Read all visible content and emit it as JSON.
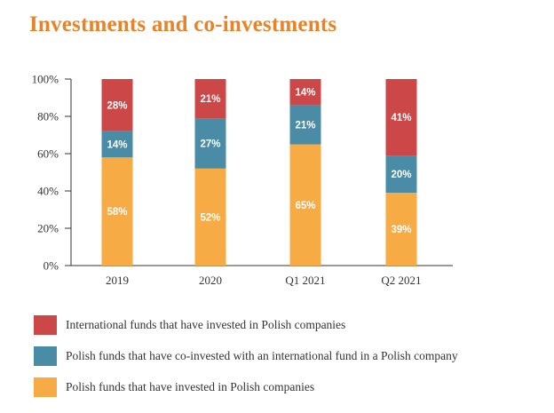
{
  "title": "Investments and co-investments",
  "colors": {
    "title": "#e8832a",
    "international": "#cc4747",
    "coinvested": "#4a8ba6",
    "polish": "#f7ab45",
    "axis": "#333333",
    "grid": "#dddddd"
  },
  "legend": [
    {
      "label": "International funds that have invested in Polish companies",
      "color": "#cc4747"
    },
    {
      "label": "Polish funds that have co-invested with an international fund in a Polish company",
      "color": "#4a8ba6"
    },
    {
      "label": "Polish funds that have invested in Polish companies",
      "color": "#f7ab45"
    }
  ],
  "chart_data": {
    "type": "bar",
    "stacked": true,
    "title": "Investments and co-investments",
    "categories": [
      "2019",
      "2020",
      "Q1 2021",
      "Q2 2021"
    ],
    "series": [
      {
        "name": "Polish funds that have invested in Polish companies",
        "color": "#f7ab45",
        "values": [
          58,
          52,
          65,
          39
        ]
      },
      {
        "name": "Polish funds that have co-invested with an international fund in a Polish company",
        "color": "#4a8ba6",
        "values": [
          14,
          27,
          21,
          20
        ]
      },
      {
        "name": "International funds that have invested in Polish companies",
        "color": "#cc4747",
        "values": [
          28,
          21,
          14,
          41
        ]
      }
    ],
    "value_suffix": "%",
    "yticks": [
      "0%",
      "20%",
      "40%",
      "60%",
      "80%",
      "100%"
    ],
    "ylim": [
      0,
      100
    ],
    "legend_position": "bottom",
    "grid": false
  }
}
